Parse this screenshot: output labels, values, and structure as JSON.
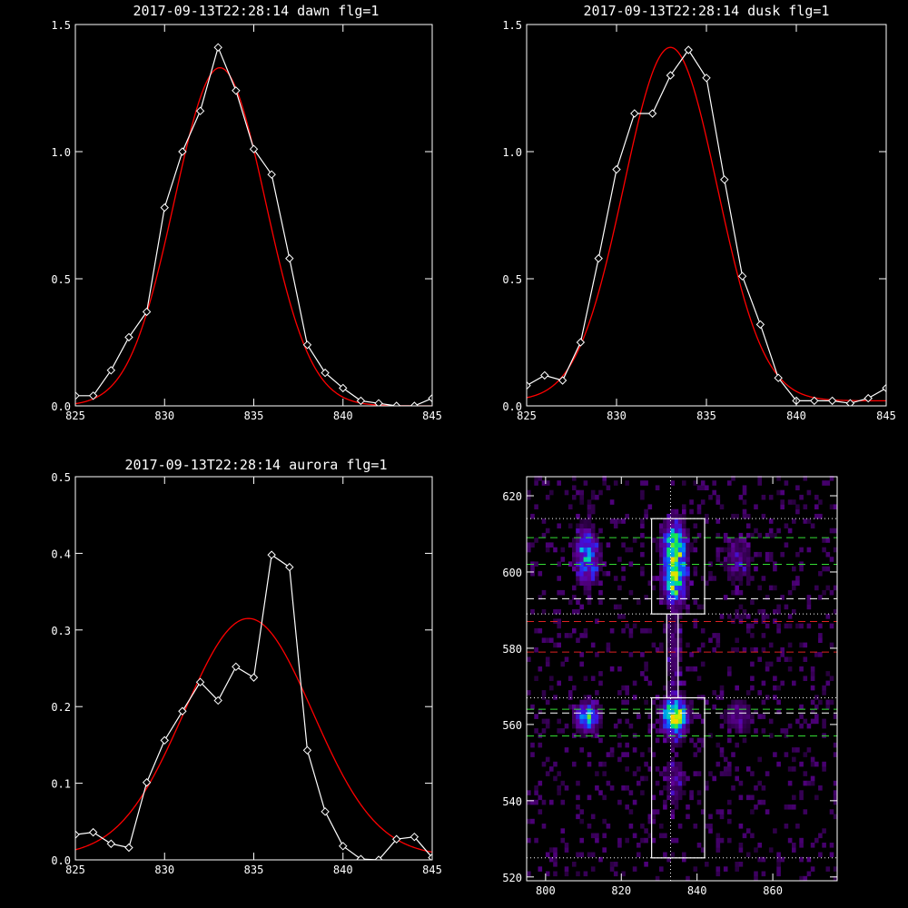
{
  "chart_data": [
    {
      "type": "line",
      "title": "2017-09-13T22:28:14 dawn flg=1",
      "xlim": [
        825,
        845
      ],
      "ylim": [
        0,
        1.5
      ],
      "xticks": [
        825,
        830,
        835,
        840,
        845
      ],
      "yticks": [
        0.0,
        0.5,
        1.0,
        1.5
      ],
      "xtick_labels": [
        "825",
        "830",
        "835",
        "840",
        "845"
      ],
      "ytick_labels": [
        "0.0",
        "0.5",
        "1.0",
        "1.5"
      ],
      "series": [
        {
          "kind": "data",
          "color": "#ffffff",
          "marker": "diamond",
          "x": [
            825,
            826,
            827,
            828,
            829,
            830,
            831,
            832,
            833,
            834,
            835,
            836,
            837,
            838,
            839,
            840,
            841,
            842,
            843,
            844,
            845
          ],
          "y": [
            0.04,
            0.04,
            0.14,
            0.27,
            0.37,
            0.78,
            1.0,
            1.16,
            1.41,
            1.24,
            1.01,
            0.91,
            0.58,
            0.24,
            0.13,
            0.07,
            0.02,
            0.01,
            0.0,
            0.0,
            0.03
          ]
        },
        {
          "kind": "fit",
          "color": "#ff0000",
          "gaussian": {
            "amplitude": 1.33,
            "center": 833.1,
            "sigma": 2.55,
            "offset": 0.0
          }
        }
      ]
    },
    {
      "type": "line",
      "title": "2017-09-13T22:28:14 dusk flg=1",
      "xlim": [
        825,
        845
      ],
      "ylim": [
        0,
        1.5
      ],
      "xticks": [
        825,
        830,
        835,
        840,
        845
      ],
      "yticks": [
        0.0,
        0.5,
        1.0,
        1.5
      ],
      "xtick_labels": [
        "825",
        "830",
        "835",
        "840",
        "845"
      ],
      "ytick_labels": [
        "0.0",
        "0.5",
        "1.0",
        "1.5"
      ],
      "series": [
        {
          "kind": "data",
          "color": "#ffffff",
          "marker": "diamond",
          "x": [
            825,
            826,
            827,
            828,
            829,
            830,
            831,
            832,
            833,
            834,
            835,
            836,
            837,
            838,
            839,
            840,
            841,
            842,
            843,
            844,
            845
          ],
          "y": [
            0.08,
            0.12,
            0.1,
            0.25,
            0.58,
            0.93,
            1.15,
            1.15,
            1.3,
            1.4,
            1.29,
            0.89,
            0.51,
            0.32,
            0.11,
            0.02,
            0.02,
            0.02,
            0.01,
            0.03,
            0.07
          ]
        },
        {
          "kind": "fit",
          "color": "#ff0000",
          "gaussian": {
            "amplitude": 1.39,
            "center": 833.0,
            "sigma": 2.6,
            "offset": 0.02
          }
        }
      ]
    },
    {
      "type": "line",
      "title": "2017-09-13T22:28:14 aurora flg=1",
      "xlim": [
        825,
        845
      ],
      "ylim": [
        0,
        0.5
      ],
      "xticks": [
        825,
        830,
        835,
        840,
        845
      ],
      "yticks": [
        0.0,
        0.1,
        0.2,
        0.3,
        0.4,
        0.5
      ],
      "xtick_labels": [
        "825",
        "830",
        "835",
        "840",
        "845"
      ],
      "ytick_labels": [
        "0.0",
        "0.1",
        "0.2",
        "0.3",
        "0.4",
        "0.5"
      ],
      "series": [
        {
          "kind": "data",
          "color": "#ffffff",
          "marker": "diamond",
          "x": [
            825,
            826,
            827,
            828,
            829,
            830,
            831,
            832,
            833,
            834,
            835,
            836,
            837,
            838,
            839,
            840,
            841,
            842,
            843,
            844,
            845
          ],
          "y": [
            0.033,
            0.036,
            0.021,
            0.016,
            0.101,
            0.156,
            0.194,
            0.232,
            0.208,
            0.252,
            0.238,
            0.398,
            0.382,
            0.143,
            0.063,
            0.018,
            0.001,
            0.0,
            0.027,
            0.03,
            0.003
          ]
        },
        {
          "kind": "fit",
          "color": "#ff0000",
          "gaussian": {
            "amplitude": 0.31,
            "center": 834.7,
            "sigma": 3.6,
            "offset": 0.005
          }
        }
      ]
    },
    {
      "type": "heatmap",
      "title": "",
      "colormap": "rainbow-on-black",
      "xlim": [
        795,
        877
      ],
      "ylim": [
        519,
        625
      ],
      "xticks": [
        800,
        820,
        840,
        860
      ],
      "yticks": [
        520,
        540,
        560,
        580,
        600,
        620
      ],
      "xtick_labels": [
        "800",
        "820",
        "840",
        "860"
      ],
      "ytick_labels": [
        "520",
        "540",
        "560",
        "580",
        "600",
        "620"
      ],
      "hot_spots": [
        {
          "x": 834,
          "y": 606,
          "sx": 2.0,
          "sy": 4.5,
          "peak": 0.95
        },
        {
          "x": 834,
          "y": 597,
          "sx": 2.0,
          "sy": 3.5,
          "peak": 0.7
        },
        {
          "x": 834,
          "y": 562,
          "sx": 2.2,
          "sy": 3.0,
          "peak": 1.0
        },
        {
          "x": 811,
          "y": 604,
          "sx": 2.0,
          "sy": 5.0,
          "peak": 0.55
        },
        {
          "x": 811,
          "y": 562,
          "sx": 2.0,
          "sy": 2.5,
          "peak": 0.7
        },
        {
          "x": 834,
          "y": 580,
          "sx": 1.5,
          "sy": 8.0,
          "peak": 0.2
        },
        {
          "x": 851,
          "y": 603,
          "sx": 2.5,
          "sy": 5.0,
          "peak": 0.2
        },
        {
          "x": 851,
          "y": 562,
          "sx": 2.5,
          "sy": 3.0,
          "peak": 0.25
        },
        {
          "x": 834,
          "y": 545,
          "sx": 2.0,
          "sy": 6.0,
          "peak": 0.18
        }
      ],
      "vertical_line": {
        "x": 833,
        "color": "#ffffff",
        "style": "dotted"
      },
      "horizontal_lines": [
        {
          "y": 614,
          "color": "#ffffff",
          "style": "dotted"
        },
        {
          "y": 609,
          "color": "#33dd33",
          "style": "dashed"
        },
        {
          "y": 602,
          "color": "#33dd33",
          "style": "dashed"
        },
        {
          "y": 593,
          "color": "#ffffff",
          "style": "dashed"
        },
        {
          "y": 589,
          "color": "#ffffff",
          "style": "dotted"
        },
        {
          "y": 587,
          "color": "#dd2222",
          "style": "dashed"
        },
        {
          "y": 579,
          "color": "#dd2222",
          "style": "dashed"
        },
        {
          "y": 567,
          "color": "#ffffff",
          "style": "dotted"
        },
        {
          "y": 564,
          "color": "#33dd33",
          "style": "dashed"
        },
        {
          "y": 563,
          "color": "#ffffff",
          "style": "dashed"
        },
        {
          "y": 557,
          "color": "#33dd33",
          "style": "dashed"
        },
        {
          "y": 525,
          "color": "#ffffff",
          "style": "dotted"
        }
      ],
      "boxes": [
        {
          "x0": 828,
          "x1": 842,
          "y0": 589,
          "y1": 614
        },
        {
          "x0": 832,
          "x1": 835,
          "y0": 567,
          "y1": 589
        },
        {
          "x0": 828,
          "x1": 842,
          "y0": 525,
          "y1": 567
        }
      ]
    }
  ]
}
